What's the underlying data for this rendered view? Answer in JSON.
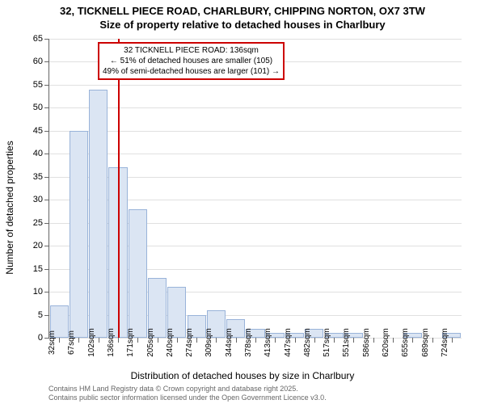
{
  "title_line1": "32, TICKNELL PIECE ROAD, CHARLBURY, CHIPPING NORTON, OX7 3TW",
  "title_line2": "Size of property relative to detached houses in Charlbury",
  "chart": {
    "type": "histogram",
    "y_axis_title": "Number of detached properties",
    "x_axis_title": "Distribution of detached houses by size in Charlbury",
    "ylim": [
      0,
      65
    ],
    "ytick_step": 5,
    "y_ticks": [
      0,
      5,
      10,
      15,
      20,
      25,
      30,
      35,
      40,
      45,
      50,
      55,
      60,
      65
    ],
    "x_labels": [
      "32sqm",
      "67sqm",
      "102sqm",
      "136sqm",
      "171sqm",
      "205sqm",
      "240sqm",
      "274sqm",
      "309sqm",
      "344sqm",
      "378sqm",
      "413sqm",
      "447sqm",
      "482sqm",
      "517sqm",
      "551sqm",
      "586sqm",
      "620sqm",
      "655sqm",
      "689sqm",
      "724sqm"
    ],
    "values": [
      7,
      45,
      54,
      37,
      28,
      13,
      11,
      5,
      6,
      4,
      2,
      1,
      1,
      2,
      1,
      1,
      0,
      0,
      1,
      0,
      1
    ],
    "bar_fill": "#dbe5f3",
    "bar_border": "#99b3d9",
    "background_color": "#ffffff",
    "grid_color": "#e0e0e0",
    "axis_color": "#666666",
    "marker": {
      "position_index": 3,
      "color": "#cc0000",
      "annotation_line1": "32 TICKNELL PIECE ROAD: 136sqm",
      "annotation_line2": "← 51% of detached houses are smaller (105)",
      "annotation_line3": "49% of semi-detached houses are larger (101) →",
      "box_border": "#cc0000"
    },
    "label_fontsize": 11,
    "title_fontsize": 13
  },
  "footer_line1": "Contains HM Land Registry data © Crown copyright and database right 2025.",
  "footer_line2": "Contains public sector information licensed under the Open Government Licence v3.0."
}
